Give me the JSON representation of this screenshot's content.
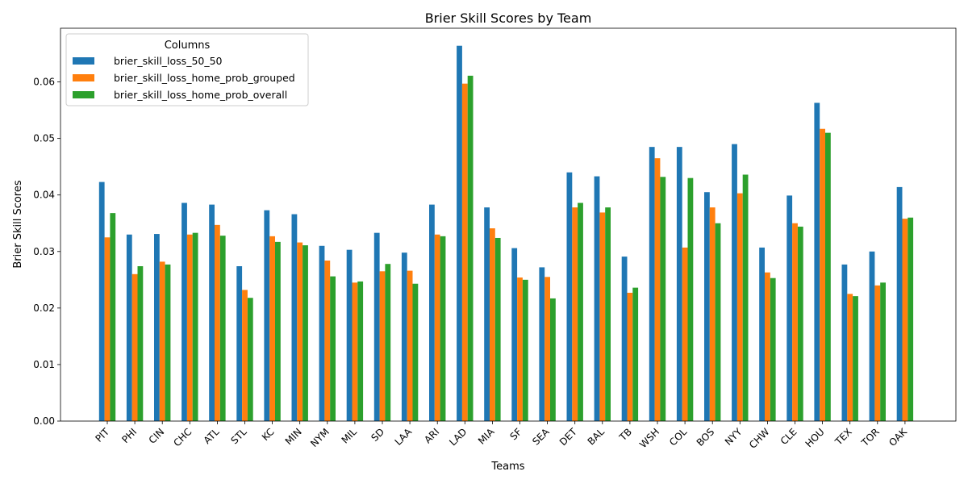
{
  "chart_data": {
    "type": "bar",
    "title": "Brier Skill Scores by Team",
    "xlabel": "Teams",
    "ylabel": "Brier Skill Scores",
    "ylim": [
      0,
      0.0695
    ],
    "yticks": [
      "0.00",
      "0.01",
      "0.02",
      "0.03",
      "0.04",
      "0.05",
      "0.06"
    ],
    "ytick_values": [
      0,
      0.01,
      0.02,
      0.03,
      0.04,
      0.05,
      0.06
    ],
    "grid": false,
    "legend": {
      "title": "Columns",
      "placement": "top-left"
    },
    "categories": [
      "PIT",
      "PHI",
      "CIN",
      "CHC",
      "ATL",
      "STL",
      "KC",
      "MIN",
      "NYM",
      "MIL",
      "SD",
      "LAA",
      "ARI",
      "LAD",
      "MIA",
      "SF",
      "SEA",
      "DET",
      "BAL",
      "TB",
      "WSH",
      "COL",
      "BOS",
      "NYY",
      "CHW",
      "CLE",
      "HOU",
      "TEX",
      "TOR",
      "OAK"
    ],
    "series": [
      {
        "name": "brier_skill_loss_50_50",
        "color": "#1f77b4",
        "values": [
          0.0423,
          0.033,
          0.0331,
          0.0386,
          0.0383,
          0.0274,
          0.0373,
          0.0366,
          0.031,
          0.0303,
          0.0333,
          0.0298,
          0.0383,
          0.0664,
          0.0378,
          0.0306,
          0.0272,
          0.044,
          0.0433,
          0.0291,
          0.0485,
          0.0485,
          0.0405,
          0.049,
          0.0307,
          0.0399,
          0.0563,
          0.0277,
          0.03,
          0.0414
        ]
      },
      {
        "name": "brier_skill_loss_home_prob_grouped",
        "color": "#ff7f0e",
        "values": [
          0.0325,
          0.026,
          0.0282,
          0.033,
          0.0347,
          0.0232,
          0.0327,
          0.0316,
          0.0284,
          0.0245,
          0.0265,
          0.0266,
          0.033,
          0.0597,
          0.0341,
          0.0254,
          0.0255,
          0.0378,
          0.0369,
          0.0227,
          0.0465,
          0.0307,
          0.0378,
          0.0403,
          0.0263,
          0.035,
          0.0517,
          0.0225,
          0.024,
          0.0358
        ]
      },
      {
        "name": "brier_skill_loss_home_prob_overall",
        "color": "#2ca02c",
        "values": [
          0.0368,
          0.0274,
          0.0277,
          0.0333,
          0.0328,
          0.0218,
          0.0317,
          0.0311,
          0.0256,
          0.0247,
          0.0278,
          0.0243,
          0.0327,
          0.0611,
          0.0324,
          0.025,
          0.0217,
          0.0386,
          0.0378,
          0.0236,
          0.0432,
          0.043,
          0.035,
          0.0436,
          0.0253,
          0.0344,
          0.051,
          0.0221,
          0.0245,
          0.036
        ]
      }
    ]
  }
}
